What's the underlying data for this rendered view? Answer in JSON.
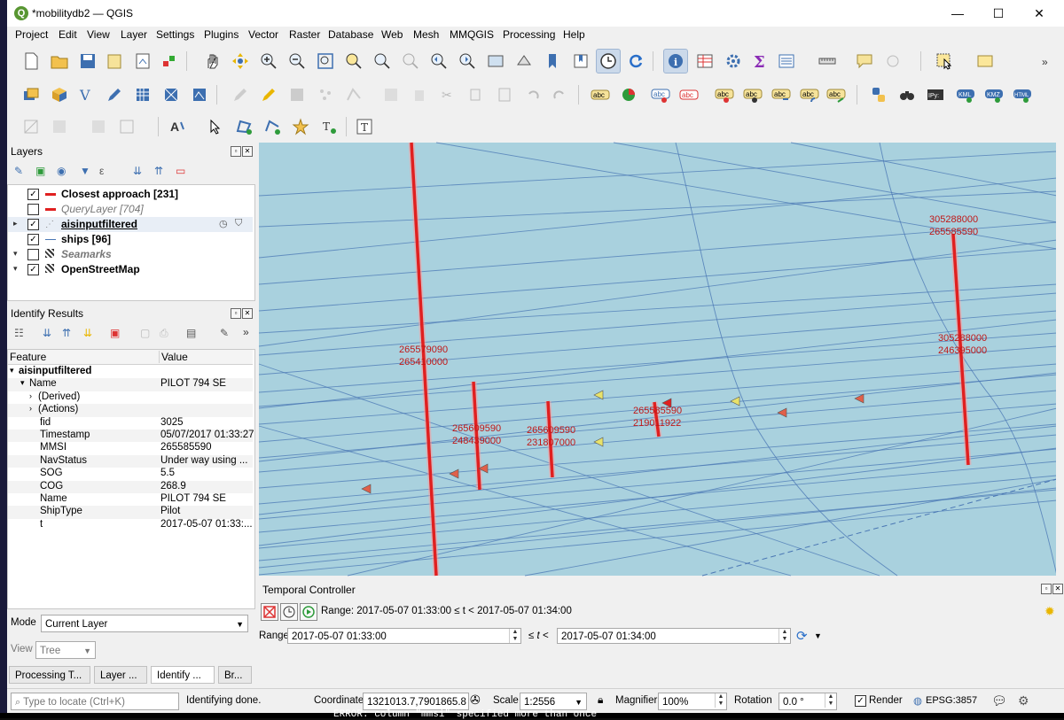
{
  "window": {
    "title": "*mobilitydb2 — QGIS",
    "minimize": "—",
    "maximize": "☐",
    "close": "✕"
  },
  "menu": [
    "Project",
    "Edit",
    "View",
    "Layer",
    "Settings",
    "Plugins",
    "Vector",
    "Raster",
    "Database",
    "Web",
    "Mesh",
    "MMQGIS",
    "Processing",
    "Help"
  ],
  "layers_panel": {
    "title": "Layers",
    "items": [
      {
        "label": "Closest approach [231]",
        "checked": true,
        "style": "bold",
        "symbol": "red-line"
      },
      {
        "label": "QueryLayer [704]",
        "checked": false,
        "style": "italic",
        "symbol": "red-line"
      },
      {
        "label": "aisinputfiltered",
        "checked": true,
        "style": "bold-underline",
        "symbol": "points"
      },
      {
        "label": "ships [96]",
        "checked": true,
        "style": "bold",
        "symbol": "blue-line"
      },
      {
        "label": "Seamarks",
        "checked": false,
        "style": "italic",
        "symbol": "raster"
      },
      {
        "label": "OpenStreetMap",
        "checked": true,
        "style": "bold",
        "symbol": "raster"
      }
    ]
  },
  "identify_panel": {
    "title": "Identify Results",
    "col_feature": "Feature",
    "col_value": "Value",
    "rows": [
      {
        "key": "aisinputfiltered",
        "value": "",
        "indent": 0,
        "bold": true,
        "expand": "▾"
      },
      {
        "key": "Name",
        "value": "PILOT 794 SE",
        "indent": 1,
        "bold": false,
        "expand": "▾"
      },
      {
        "key": "(Derived)",
        "value": "",
        "indent": 2,
        "bold": false,
        "expand": "›"
      },
      {
        "key": "(Actions)",
        "value": "",
        "indent": 2,
        "bold": false,
        "expand": "›"
      },
      {
        "key": "fid",
        "value": "3025",
        "indent": 2,
        "bold": false,
        "expand": ""
      },
      {
        "key": "Timestamp",
        "value": "05/07/2017 01:33:27",
        "indent": 2,
        "bold": false,
        "expand": ""
      },
      {
        "key": "MMSI",
        "value": "265585590",
        "indent": 2,
        "bold": false,
        "expand": ""
      },
      {
        "key": "NavStatus",
        "value": "Under way using ...",
        "indent": 2,
        "bold": false,
        "expand": ""
      },
      {
        "key": "SOG",
        "value": "5.5",
        "indent": 2,
        "bold": false,
        "expand": ""
      },
      {
        "key": "COG",
        "value": "268.9",
        "indent": 2,
        "bold": false,
        "expand": ""
      },
      {
        "key": "Name",
        "value": "PILOT 794 SE",
        "indent": 2,
        "bold": false,
        "expand": ""
      },
      {
        "key": "ShipType",
        "value": "Pilot",
        "indent": 2,
        "bold": false,
        "expand": ""
      },
      {
        "key": "t",
        "value": "2017-05-07 01:33:...",
        "indent": 2,
        "bold": false,
        "expand": ""
      }
    ],
    "mode_label": "Mode",
    "mode_value": "Current Layer",
    "view_label": "View",
    "view_value": "Tree"
  },
  "tabs": [
    "Processing T...",
    "Layer ...",
    "Identify ...",
    "Br..."
  ],
  "map_labels": [
    {
      "l1": "265579090",
      "l2": "265410000"
    },
    {
      "l1": "265609590",
      "l2": "248439000"
    },
    {
      "l1": "265609590",
      "l2": "231807000"
    },
    {
      "l1": "265585590",
      "l2": "219011922"
    },
    {
      "l1": "305288000",
      "l2": "265585590"
    },
    {
      "l1": "305288000",
      "l2": "246395000"
    }
  ],
  "temporal": {
    "title": "Temporal Controller",
    "range_text": "Range: 2017-05-07 01:33:00 ≤ t < 2017-05-07 01:34:00",
    "range_label": "Range",
    "start": "2017-05-07 01:33:00",
    "between": "≤ t <",
    "end": "2017-05-07 01:34:00"
  },
  "status": {
    "locate_placeholder": "Type to locate (Ctrl+K)",
    "message": "Identifying done.",
    "coordinate_label": "Coordinate",
    "coordinate": "1321013.7,7901865.8",
    "scale_label": "Scale",
    "scale": "1:2556",
    "magnifier_label": "Magnifier",
    "magnifier": "100%",
    "rotation_label": "Rotation",
    "rotation": "0.0 °",
    "render_label": "Render",
    "crs": "EPSG:3857"
  },
  "background_text": "ERROR:  column \"mmsi\" specified more than once",
  "colors": {
    "map_water": "#a9d1de",
    "track_blue": "#4a77b4",
    "closest_red": "#e02020",
    "qgis_green": "#589632"
  }
}
